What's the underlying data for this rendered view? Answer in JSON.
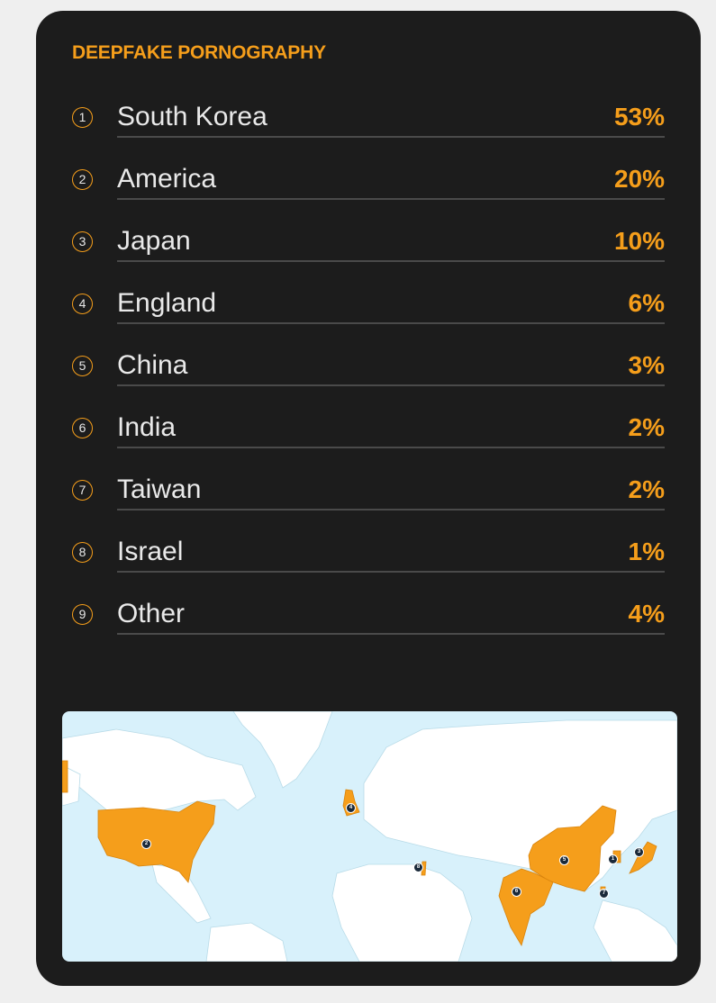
{
  "title": "DEEPFAKE PORNOGRAPHY",
  "accent_color": "#f59e1b",
  "rows": [
    {
      "rank": "1",
      "country": "South Korea",
      "percent": "53%"
    },
    {
      "rank": "2",
      "country": "America",
      "percent": "20%"
    },
    {
      "rank": "3",
      "country": "Japan",
      "percent": "10%"
    },
    {
      "rank": "4",
      "country": "England",
      "percent": "6%"
    },
    {
      "rank": "5",
      "country": "China",
      "percent": "3%"
    },
    {
      "rank": "6",
      "country": "India",
      "percent": "2%"
    },
    {
      "rank": "7",
      "country": "Taiwan",
      "percent": "2%"
    },
    {
      "rank": "8",
      "country": "Israel",
      "percent": "1%"
    },
    {
      "rank": "9",
      "country": "Other",
      "percent": "4%"
    }
  ],
  "map": {
    "highlight_color": "#f59e1b",
    "markers": [
      "1",
      "2",
      "3",
      "4",
      "5",
      "6",
      "7",
      "8"
    ]
  }
}
